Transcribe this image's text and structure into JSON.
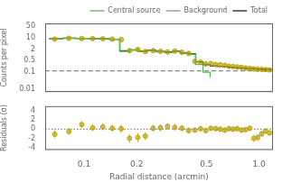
{
  "chart_data": [
    {
      "type": "scatter",
      "log": true,
      "ylabel": "Counts per pixel",
      "xlim": [
        0.06,
        1.2
      ],
      "ylim": [
        0.007,
        70
      ],
      "xticks": [
        0.1,
        0.2,
        0.5,
        {
          "value": 1.0,
          "label": "1.0"
        }
      ],
      "yticks": [
        0.01,
        0.1,
        0.5,
        2,
        10,
        50
      ],
      "tick_labels": "y",
      "grid": false,
      "legend": "upper right",
      "series": [
        {
          "type": "scatter",
          "marker": "circle",
          "line_style": "none",
          "color": "#b8a000",
          "x": [
            0.068,
            0.082,
            0.097,
            0.112,
            0.128,
            0.145,
            0.163,
            0.182,
            0.203,
            0.224,
            0.248,
            0.273,
            0.3,
            0.33,
            0.362,
            0.396,
            0.43,
            0.463,
            0.496,
            0.53,
            0.565,
            0.6,
            0.636,
            0.672,
            0.71,
            0.75,
            0.793,
            0.838,
            0.885,
            0.933,
            0.983,
            1.035,
            1.09,
            1.145
          ],
          "values": [
            8.5,
            9.5,
            9.2,
            9.1,
            8.8,
            8.5,
            8.0,
            1.8,
            2.1,
            1.6,
            1.8,
            1.65,
            1.5,
            1.7,
            1.45,
            1.25,
            0.42,
            0.38,
            0.3,
            0.32,
            0.28,
            0.27,
            0.25,
            0.22,
            0.21,
            0.2,
            0.19,
            0.175,
            0.165,
            0.155,
            0.148,
            0.145,
            0.14,
            0.135
          ],
          "errors": [
            1.2,
            1.1,
            1.0,
            0.9,
            1.0,
            1.0,
            1.1,
            0.5,
            0.5,
            0.45,
            0.4,
            0.38,
            0.35,
            0.38,
            0.33,
            0.3,
            0.12,
            0.11,
            0.09,
            0.09,
            0.08,
            0.08,
            0.07,
            0.07,
            0.06,
            0.06,
            0.06,
            0.055,
            0.05,
            0.05,
            0.045,
            0.045,
            0.04,
            0.04
          ]
        },
        {
          "name": "Central source",
          "type": "line",
          "line_style": "solid",
          "color": "#55bb55",
          "x": [
            0.063,
            0.076,
            0.076,
            0.09,
            0.09,
            0.106,
            0.106,
            0.122,
            0.122,
            0.14,
            0.14,
            0.16,
            0.16,
            0.182,
            0.182,
            0.205,
            0.205,
            0.23,
            0.23,
            0.258,
            0.258,
            0.288,
            0.288,
            0.32,
            0.32,
            0.355,
            0.355,
            0.393,
            0.393,
            0.434,
            0.434,
            0.478,
            0.478,
            0.525,
            0.525
          ],
          "values": [
            9.0,
            9.0,
            9.5,
            9.5,
            9.2,
            9.2,
            9.0,
            9.0,
            8.7,
            8.7,
            8.2,
            8.2,
            1.6,
            1.6,
            1.9,
            1.9,
            1.55,
            1.55,
            1.75,
            1.75,
            1.5,
            1.5,
            1.4,
            1.4,
            1.55,
            1.55,
            1.25,
            1.25,
            1.1,
            1.1,
            0.28,
            0.28,
            0.1,
            0.1,
            0.05
          ]
        },
        {
          "name": "Background",
          "type": "hline",
          "line_style": "dashed",
          "color": "#888888",
          "values": [
            0.12
          ]
        },
        {
          "name": "Total",
          "type": "line",
          "line_style": "solid",
          "color": "#222222",
          "x": [
            0.063,
            0.076,
            0.076,
            0.09,
            0.09,
            0.106,
            0.106,
            0.122,
            0.122,
            0.14,
            0.14,
            0.16,
            0.16,
            0.182,
            0.182,
            0.205,
            0.205,
            0.23,
            0.23,
            0.258,
            0.258,
            0.288,
            0.288,
            0.32,
            0.32,
            0.355,
            0.355,
            0.393,
            0.393,
            0.434,
            0.434,
            0.478,
            0.478,
            0.525,
            0.525,
            0.575,
            0.575,
            0.625,
            0.625,
            0.677,
            0.677,
            0.73,
            0.73,
            0.785,
            0.785,
            0.843,
            0.843,
            0.903,
            0.903,
            0.966,
            0.966,
            1.032,
            1.032,
            1.1,
            1.1,
            1.172,
            1.172
          ],
          "values": [
            9.1,
            9.1,
            9.6,
            9.6,
            9.3,
            9.3,
            9.1,
            9.1,
            8.8,
            8.8,
            8.3,
            8.3,
            1.75,
            1.75,
            2.0,
            2.0,
            1.65,
            1.65,
            1.85,
            1.85,
            1.6,
            1.6,
            1.5,
            1.5,
            1.65,
            1.65,
            1.35,
            1.35,
            1.2,
            1.2,
            0.4,
            0.4,
            0.27,
            0.27,
            0.23,
            0.23,
            0.22,
            0.22,
            0.205,
            0.205,
            0.192,
            0.192,
            0.182,
            0.182,
            0.172,
            0.172,
            0.163,
            0.163,
            0.156,
            0.156,
            0.15,
            0.15,
            0.145,
            0.145,
            0.141,
            0.141,
            0.138
          ]
        }
      ]
    },
    {
      "type": "scatter",
      "log": "x",
      "xlabel": "Radial distance (arcmin)",
      "ylabel": "Residuals (σ)",
      "xlim": [
        0.06,
        1.2
      ],
      "ylim": [
        -4.5,
        5.0
      ],
      "xticks": [
        0.1,
        0.2,
        0.5,
        {
          "value": 1.0,
          "label": "1.0"
        }
      ],
      "yticks": [
        -4,
        -2,
        0,
        2,
        4
      ],
      "grid": false,
      "series": [
        {
          "type": "scatter",
          "marker": "circle",
          "line_style": "none",
          "color": "#b8a000",
          "x": [
            0.068,
            0.082,
            0.097,
            0.112,
            0.128,
            0.145,
            0.163,
            0.182,
            0.203,
            0.224,
            0.248,
            0.273,
            0.3,
            0.33,
            0.362,
            0.396,
            0.43,
            0.463,
            0.496,
            0.53,
            0.565,
            0.6,
            0.636,
            0.672,
            0.71,
            0.75,
            0.793,
            0.838,
            0.885,
            0.933,
            0.983,
            1.035,
            1.09,
            1.145
          ],
          "values": [
            -1.1,
            -0.5,
            1.0,
            0.3,
            0.5,
            0.2,
            0.1,
            -2.0,
            -1.8,
            -1.5,
            0.2,
            0.3,
            0.6,
            0.4,
            0.2,
            -0.3,
            -0.2,
            0.1,
            -0.3,
            0.2,
            0.1,
            0.0,
            -0.2,
            0.1,
            0.0,
            0.1,
            -0.2,
            -0.1,
            0.2,
            -2.0,
            -1.8,
            -1.0,
            -0.4,
            -0.8
          ],
          "errors": [
            0.9,
            0.8,
            0.7,
            0.7,
            0.8,
            0.8,
            0.9,
            1.0,
            1.0,
            0.9,
            0.8,
            0.8,
            0.7,
            0.8,
            0.7,
            0.7,
            0.6,
            0.6,
            0.6,
            0.6,
            0.6,
            0.6,
            0.6,
            0.6,
            0.6,
            0.6,
            0.6,
            0.6,
            0.6,
            0.8,
            0.8,
            0.7,
            0.6,
            0.6
          ]
        },
        {
          "type": "hline",
          "line_style": "dotted",
          "color": "#888888",
          "values": [
            0
          ]
        }
      ]
    }
  ]
}
